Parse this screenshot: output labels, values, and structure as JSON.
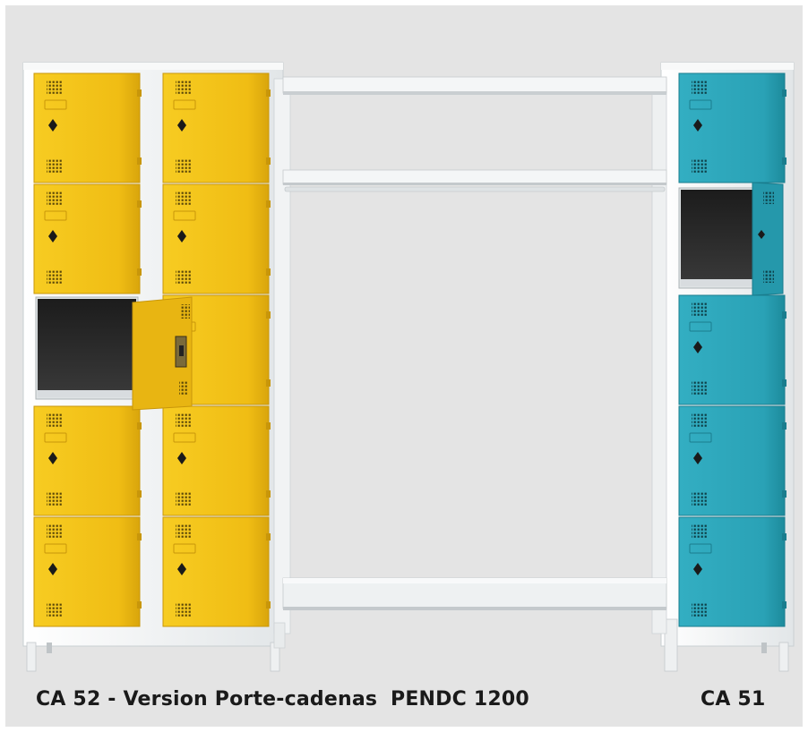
{
  "colors": {
    "background": "#e4e4e4",
    "frame": "#f3f5f5",
    "frame_shadow": "#cfd4d6",
    "yellow_door": "#f2c118",
    "yellow_dark": "#c8960a",
    "teal_door": "#2da6ba",
    "teal_dark": "#1a7d8e",
    "interior": "#2a2a2a"
  },
  "captions": {
    "left": "CA 52 - Version Porte-cadenas",
    "middle": "PENDC 1200",
    "right": "CA 51"
  },
  "products": [
    {
      "name": "CA 52 - Version Porte-cadenas",
      "door_color": "yellow",
      "columns": 2,
      "rows": 5,
      "open_door": {
        "column": 1,
        "row": 3
      }
    },
    {
      "name": "PENDC 1200",
      "type": "shelf-rack"
    },
    {
      "name": "CA 51",
      "door_color": "teal",
      "columns": 1,
      "rows": 5,
      "open_door": {
        "column": 1,
        "row": 2
      }
    }
  ]
}
